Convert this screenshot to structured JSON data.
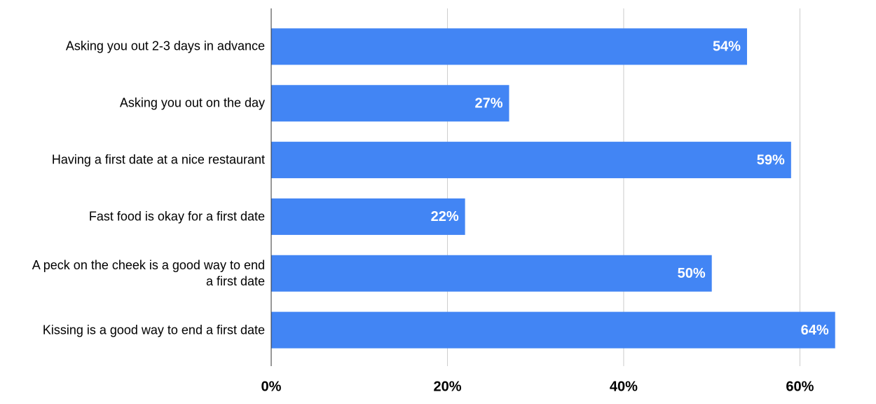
{
  "chart_data": {
    "type": "hbar",
    "categories": [
      "Asking you out 2-3 days in advance",
      "Asking you out on the day",
      "Having a first date at a nice restaurant",
      "Fast food is okay for a first date",
      "A peck on the cheek is a good way to end a first date",
      "Kissing is a good way to end a first date"
    ],
    "values": [
      54,
      27,
      59,
      22,
      50,
      64
    ],
    "value_labels": [
      "54%",
      "27%",
      "59%",
      "22%",
      "50%",
      "64%"
    ],
    "color": "#4285f4",
    "xlim": [
      0,
      68
    ],
    "xticks": [
      {
        "value": 0,
        "label": "0%"
      },
      {
        "value": 20,
        "label": "20%"
      },
      {
        "value": 40,
        "label": "40%"
      },
      {
        "value": 60,
        "label": "60%"
      }
    ],
    "grid": true
  }
}
